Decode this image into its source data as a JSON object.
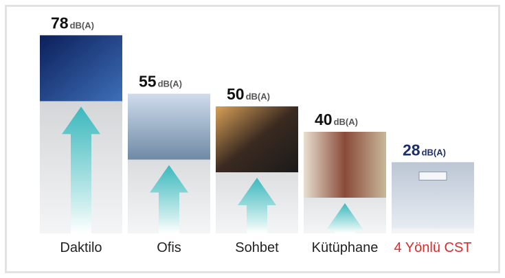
{
  "chart_data": {
    "type": "bar",
    "categories": [
      "Daktilo",
      "Ofis",
      "Sohbet",
      "Kütüphane",
      "4 Yönlü CST"
    ],
    "values": [
      78,
      55,
      50,
      40,
      28
    ],
    "unit": "dB(A)"
  }
}
